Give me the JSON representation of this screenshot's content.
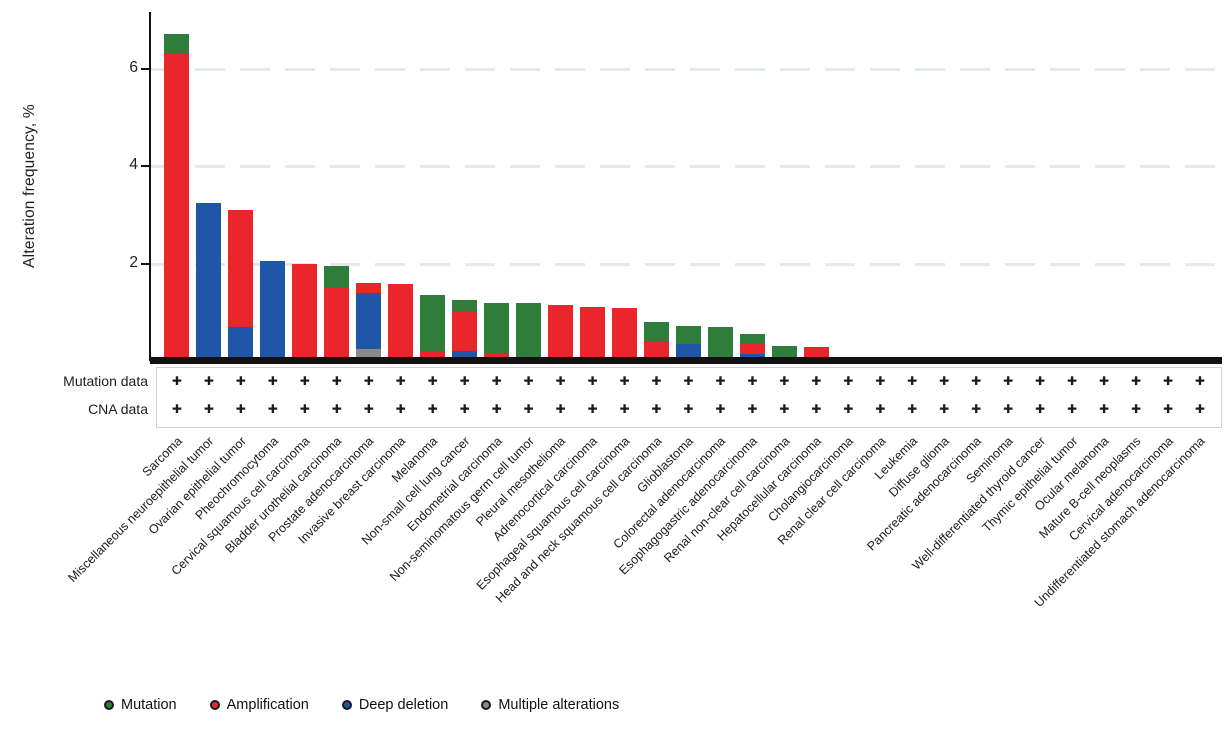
{
  "y_axis": {
    "title": "Alteration frequency, %",
    "ticks": [
      {
        "value": 2,
        "label": "2"
      },
      {
        "value": 4,
        "label": "4"
      },
      {
        "value": 6,
        "label": "6"
      }
    ]
  },
  "data_rows": {
    "mutation_label": "Mutation data",
    "cna_label": "CNA data",
    "plus_glyph": "✚",
    "all_columns_have_mutation_data": true,
    "all_columns_have_cna_data": true
  },
  "legend": {
    "items": [
      {
        "label": "Mutation",
        "color": "#2f7d3b"
      },
      {
        "label": "Amplification",
        "color": "#e8262b"
      },
      {
        "label": "Deep deletion",
        "color": "#2056a7"
      },
      {
        "label": "Multiple alterations",
        "color": "#8a8a8a"
      }
    ]
  },
  "chart_data": {
    "type": "bar",
    "stacked": true,
    "title": "",
    "xlabel": "",
    "ylabel": "Alteration frequency, %",
    "ylim": [
      0,
      7.1
    ],
    "grid_values": [
      2,
      4,
      6
    ],
    "grid_style": "dashed",
    "stack_order_bottom_to_top": [
      "Multiple alterations",
      "Deep deletion",
      "Amplification",
      "Mutation"
    ],
    "categories": [
      "Sarcoma",
      "Miscellaneous neuroepithelial tumor",
      "Ovarian epithelial tumor",
      "Pheochromocytoma",
      "Cervical squamous cell carcinoma",
      "Bladder urothelial carcinoma",
      "Prostate adenocarcinoma",
      "Invasive breast carcinoma",
      "Melanoma",
      "Non-small cell lung cancer",
      "Endometrial carcinoma",
      "Non-seminomatous germ cell tumor",
      "Pleural mesothelioma",
      "Adrenocortical carcinoma",
      "Esophageal squamous cell carcinoma",
      "Head and neck squamous cell carcinoma",
      "Glioblastoma",
      "Colorectal adenocarcinoma",
      "Esophagogastric adenocarcinoma",
      "Renal non-clear cell carcinoma",
      "Hepatocellular carcinoma",
      "Cholangiocarcinoma",
      "Renal clear cell carcinoma",
      "Leukemia",
      "Diffuse glioma",
      "Pancreatic adenocarcinoma",
      "Seminoma",
      "Well-differentiated thyroid cancer",
      "Thymic epithelial tumor",
      "Ocular melanoma",
      "Mature B-cell neoplasms",
      "Cervical adenocarcinoma",
      "Undifferentiated stomach adenocarcinoma"
    ],
    "series": [
      {
        "name": "Mutation",
        "color": "#2f7d3b",
        "values": [
          0.4,
          0,
          0,
          0,
          0,
          0.45,
          0,
          0,
          1.15,
          0.23,
          1.03,
          1.18,
          0,
          0,
          0,
          0.4,
          0.37,
          0.69,
          0.2,
          0.3,
          0,
          0,
          0,
          0,
          0,
          0,
          0,
          0,
          0,
          0,
          0,
          0,
          0
        ]
      },
      {
        "name": "Amplification",
        "color": "#e8262b",
        "values": [
          6.3,
          0,
          2.4,
          0,
          2.0,
          1.5,
          0.2,
          1.5,
          0.2,
          0.82,
          0.17,
          0,
          1.15,
          1.1,
          1.08,
          0.4,
          0,
          0,
          0.2,
          0,
          0.28,
          0,
          0,
          0,
          0,
          0,
          0,
          0,
          0,
          0,
          0,
          0,
          0
        ]
      },
      {
        "name": "Deep deletion",
        "color": "#2056a7",
        "values": [
          0,
          3.25,
          0.7,
          2.05,
          0,
          0,
          1.15,
          0.08,
          0,
          0.2,
          0,
          0,
          0,
          0,
          0,
          0,
          0.35,
          0,
          0.15,
          0,
          0,
          0,
          0,
          0,
          0,
          0,
          0,
          0,
          0,
          0,
          0,
          0,
          0
        ]
      },
      {
        "name": "Multiple alterations",
        "color": "#8a8a8a",
        "values": [
          0,
          0,
          0,
          0,
          0,
          0,
          0.25,
          0,
          0,
          0,
          0,
          0,
          0,
          0,
          0,
          0,
          0,
          0,
          0,
          0,
          0,
          0,
          0,
          0,
          0,
          0,
          0,
          0,
          0,
          0,
          0,
          0,
          0
        ]
      }
    ]
  }
}
